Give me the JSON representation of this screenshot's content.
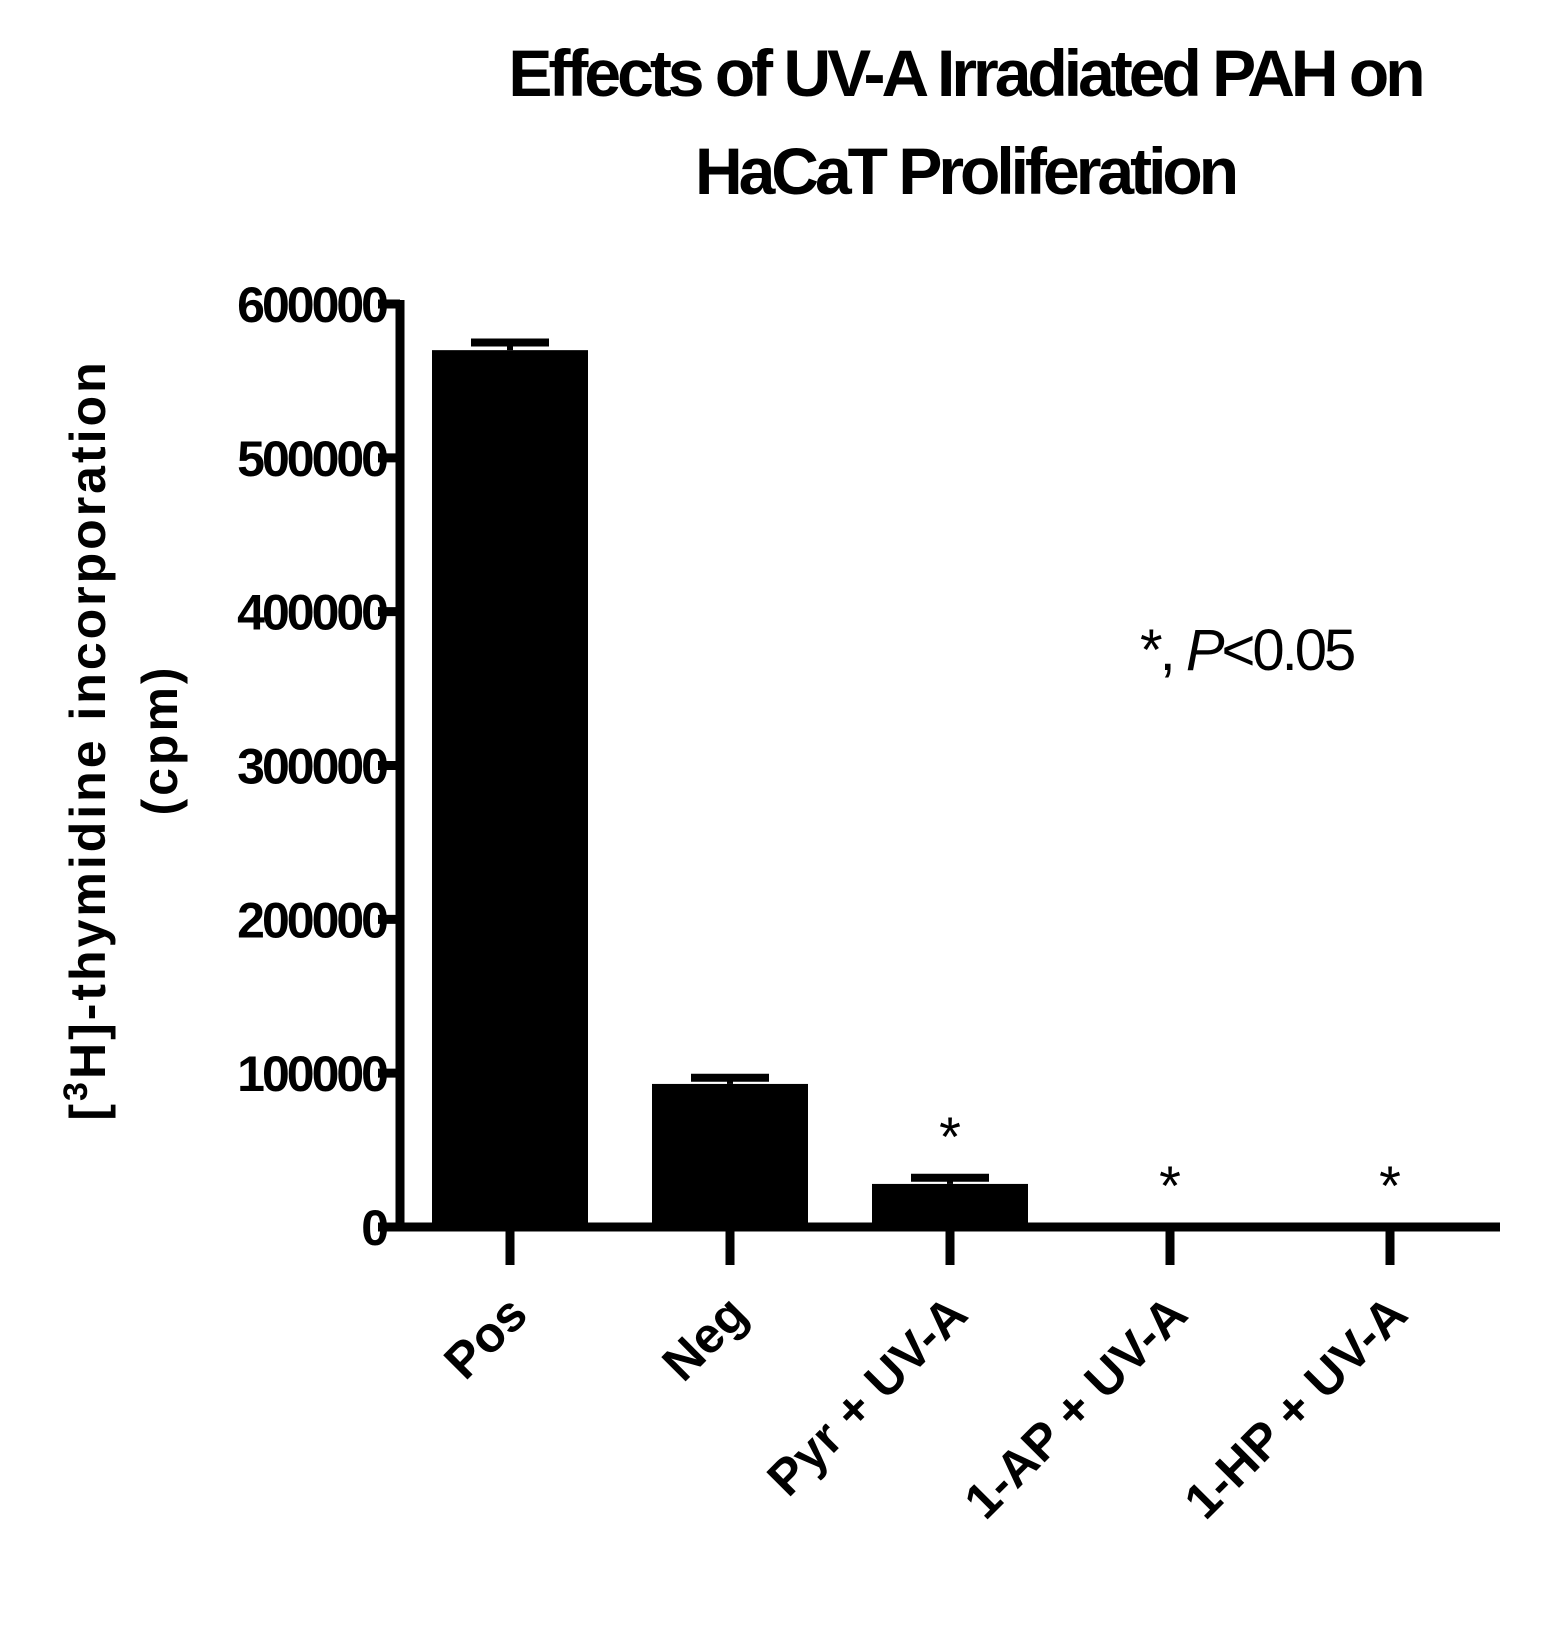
{
  "chart_data": {
    "type": "bar",
    "title_line1": "Effects of UV-A Irradiated PAH on",
    "title_line2": "HaCaT Proliferation",
    "ylabel_line1_prefix": "[",
    "ylabel_line1_sup": "3",
    "ylabel_line1_rest": "H]-thymidine incorporation",
    "ylabel_line2": "(cpm)",
    "xlabel": "",
    "ylim": [
      0,
      600000
    ],
    "yticks": [
      "0",
      "100000",
      "200000",
      "300000",
      "400000",
      "500000",
      "600000"
    ],
    "categories": [
      "Pos",
      "Neg",
      "Pyr + UV-A",
      "1-AP + UV-A",
      "1-HP + UV-A"
    ],
    "values": [
      570000,
      93000,
      28000,
      0,
      0
    ],
    "error_upper": [
      575000,
      97000,
      32000,
      0,
      0
    ],
    "significance": [
      "",
      "",
      "*",
      "*",
      "*"
    ],
    "annotation_star": "*",
    "annotation_sep": ", ",
    "annotation_p": "P",
    "annotation_rest": "<0.05",
    "bar_color": "#000000",
    "grid": false,
    "legend": "none"
  }
}
